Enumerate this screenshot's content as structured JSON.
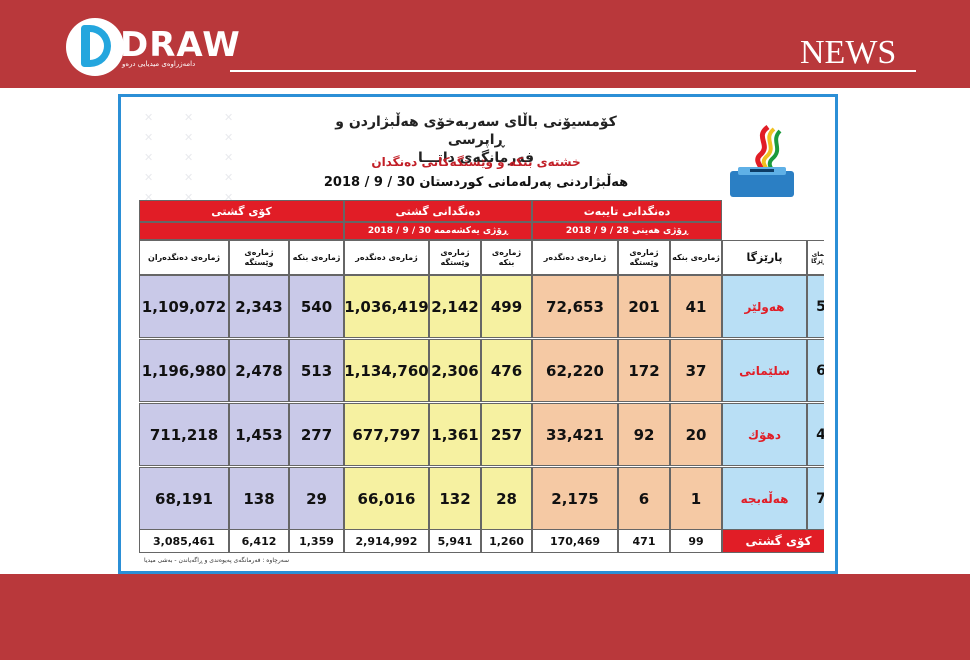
{
  "brand": {
    "logo_text": "DRAW",
    "logo_subtitle": "دامەزراوەی میدیایی درەو",
    "news_label": "NEWS"
  },
  "header": {
    "title_line1": "کۆمسیۆنی باڵای سەربەخۆی هەڵبژاردن و ڕاپرسی",
    "title_line2": "فەرمانگەی داتـــا",
    "subtitle": "خشتەی بنکە و وێستگەکانی دەنگدان",
    "date_line": "هەڵبژاردنی پەرلەمانی کوردستان 30 / 9 / 2018"
  },
  "groups": {
    "fixed": {
      "title": "دەنگدانی تایبەت",
      "date": "ڕۆژی هەینی   28 / 9 / 2018"
    },
    "general": {
      "title": "دەنگدانی گشتی",
      "date": "ڕۆژی یەکشەممە   30 / 9 / 2018"
    },
    "total": {
      "title": "کۆی گشتی"
    }
  },
  "columns": {
    "code": "هێمای پارێزگا",
    "province": "پارێزگا",
    "centers": "ژمارەی بنکە",
    "stations": "ژمارەی وێستگە",
    "voters": "ژمارەی دەنگدەر",
    "voters_total": "ژمارەی دەنگدەران"
  },
  "rows": [
    {
      "code": "5",
      "province": "هەولێر",
      "f_centers": "41",
      "f_stations": "201",
      "f_voters": "72,653",
      "g_centers": "499",
      "g_stations": "2,142",
      "g_voters": "1,036,419",
      "t_centers": "540",
      "t_stations": "2,343",
      "t_voters": "1,109,072"
    },
    {
      "code": "6",
      "province": "سلێمانی",
      "f_centers": "37",
      "f_stations": "172",
      "f_voters": "62,220",
      "g_centers": "476",
      "g_stations": "2,306",
      "g_voters": "1,134,760",
      "t_centers": "513",
      "t_stations": "2,478",
      "t_voters": "1,196,980"
    },
    {
      "code": "4",
      "province": "دهۆك",
      "f_centers": "20",
      "f_stations": "92",
      "f_voters": "33,421",
      "g_centers": "257",
      "g_stations": "1,361",
      "g_voters": "677,797",
      "t_centers": "277",
      "t_stations": "1,453",
      "t_voters": "711,218"
    },
    {
      "code": "7",
      "province": "هەڵەبجە",
      "f_centers": "1",
      "f_stations": "6",
      "f_voters": "2,175",
      "g_centers": "28",
      "g_stations": "132",
      "g_voters": "66,016",
      "t_centers": "29",
      "t_stations": "138",
      "t_voters": "68,191"
    }
  ],
  "totals": {
    "label": "کۆی گشتی",
    "f_centers": "99",
    "f_stations": "471",
    "f_voters": "170,469",
    "g_centers": "1,260",
    "g_stations": "5,941",
    "g_voters": "2,914,992",
    "t_centers": "1,359",
    "t_stations": "6,412",
    "t_voters": "3,085,461"
  },
  "footer": "سەرچاوە : فەرمانگەی پەیوەندی و ڕاگەیاندن - بەشی میدیا",
  "colors": {
    "band": "#b9383b",
    "red": "#e11d26",
    "total": "#c9c9e8",
    "general": "#f6f1a1",
    "fixed": "#f5c9a4",
    "blue": "#b9dff5",
    "frame": "#2b8fd6"
  },
  "icons": {
    "logo": "draw-logo-icon",
    "emblem": "ballot-box-icon"
  }
}
